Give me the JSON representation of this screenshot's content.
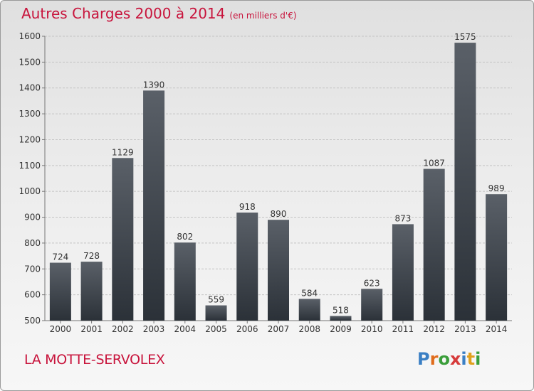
{
  "title": "Autres Charges 2000 à 2014",
  "title_unit": "(en milliers d'€)",
  "place": "LA MOTTE-SERVOLEX",
  "logo": {
    "letters": [
      {
        "ch": "P",
        "color": "#3a7fc4"
      },
      {
        "ch": "r",
        "color": "#e06c1c"
      },
      {
        "ch": "o",
        "color": "#3a9e3a"
      },
      {
        "ch": "x",
        "color": "#d63a3a"
      },
      {
        "ch": "i",
        "color": "#3a7fc4"
      },
      {
        "ch": "t",
        "color": "#e0a01c"
      },
      {
        "ch": "i",
        "color": "#3a9e3a"
      }
    ]
  },
  "colors": {
    "title": "#c8143c",
    "bar_top": "#5a6068",
    "bar_bottom": "#2b3138",
    "grid": "#c4c4c4"
  },
  "chart_data": {
    "type": "bar",
    "title": "Autres Charges 2000 à 2014",
    "categories": [
      "2000",
      "2001",
      "2002",
      "2003",
      "2004",
      "2005",
      "2006",
      "2007",
      "2008",
      "2009",
      "2010",
      "2011",
      "2012",
      "2013",
      "2014"
    ],
    "values": [
      724,
      728,
      1129,
      1390,
      802,
      559,
      918,
      890,
      584,
      518,
      623,
      873,
      1087,
      1575,
      989
    ],
    "ylim": [
      500,
      1600
    ],
    "yticks": [
      500,
      600,
      700,
      800,
      900,
      1000,
      1100,
      1200,
      1300,
      1400,
      1500,
      1600
    ],
    "grid": true,
    "data_labels": true
  }
}
